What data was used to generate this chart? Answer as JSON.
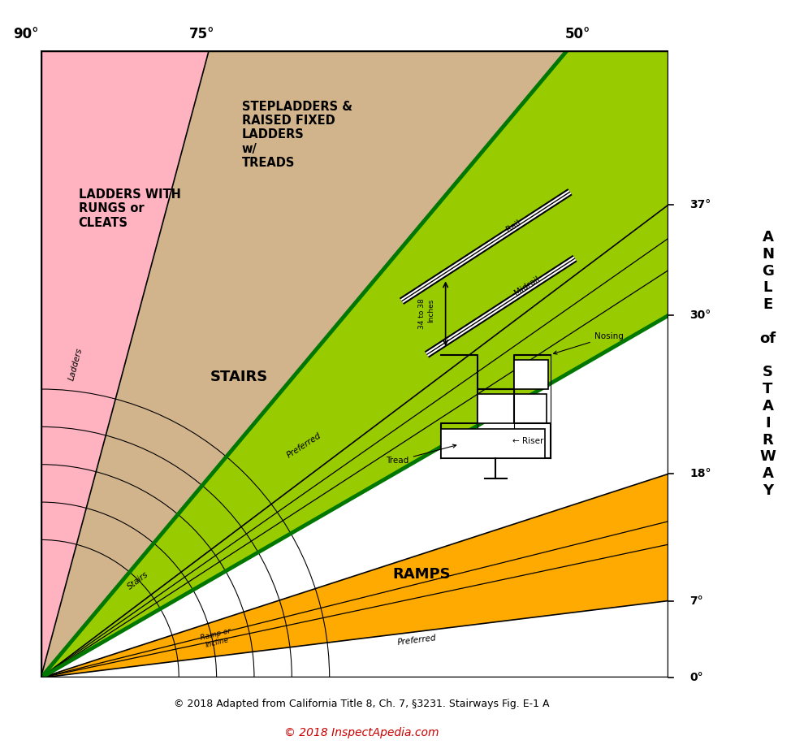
{
  "caption1": "© 2018 Adapted from California Title 8, Ch. 7, §3231. Stairways Fig. E-1 A",
  "caption2": "© 2018 InspectApedia.com",
  "caption2_color": "#cc0000",
  "zone_colors": {
    "ladders": "#ffb3c1",
    "stepladders": "#d2b48c",
    "stairs": "#99cc00",
    "ramps": "#ffaa00",
    "white": "#ffffff"
  },
  "labels": {
    "ladders": "LADDERS WITH\nRUNGS or\nCLEATS",
    "stepladders": "STEPLADDERS &\nRAISED FIXED\nLADDERS\nw/\nTREADS",
    "stairs": "STAIRS",
    "ramps": "RAMPS"
  }
}
